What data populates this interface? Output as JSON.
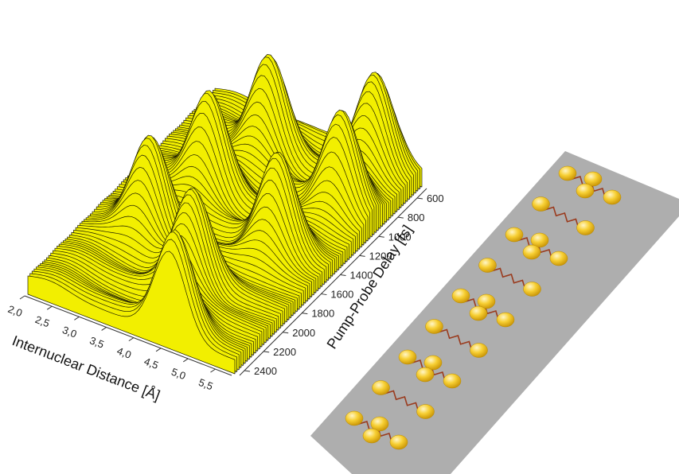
{
  "chart_data": {
    "type": "surface3d",
    "x_axis": {
      "label": "Internuclear Distance [Å]",
      "ticks": [
        "2,0",
        "2,5",
        "3,0",
        "3,5",
        "4,0",
        "4,5",
        "5,0",
        "5,5"
      ],
      "range": [
        2.0,
        5.8
      ]
    },
    "y_axis": {
      "label": "Pump-Probe Delay [fs]",
      "ticks": [
        "600",
        "800",
        "1000",
        "1200",
        "1400",
        "1600",
        "1800",
        "2000",
        "2200",
        "2400"
      ],
      "range": [
        500,
        2450
      ]
    },
    "surface_color": "#f2ef00",
    "line_color": "#1a1a00",
    "floor_color": "#b3b3b3",
    "wavepacket_ridges": [
      {
        "delay_fs": 2400,
        "distance_A": 4.6
      },
      {
        "delay_fs": 2000,
        "distance_A": 4.2
      },
      {
        "delay_fs": 1750,
        "distance_A": 3.0
      },
      {
        "delay_fs": 1500,
        "distance_A": 4.9
      },
      {
        "delay_fs": 1250,
        "distance_A": 3.2
      },
      {
        "delay_fs": 1000,
        "distance_A": 5.2
      },
      {
        "delay_fs": 800,
        "distance_A": 3.5
      },
      {
        "delay_fs": 600,
        "distance_A": 5.1
      }
    ]
  },
  "molecule_panel": {
    "background": "#aeaeae",
    "atom_color": "#f5c400",
    "bond_color": "#9a3b1e"
  }
}
